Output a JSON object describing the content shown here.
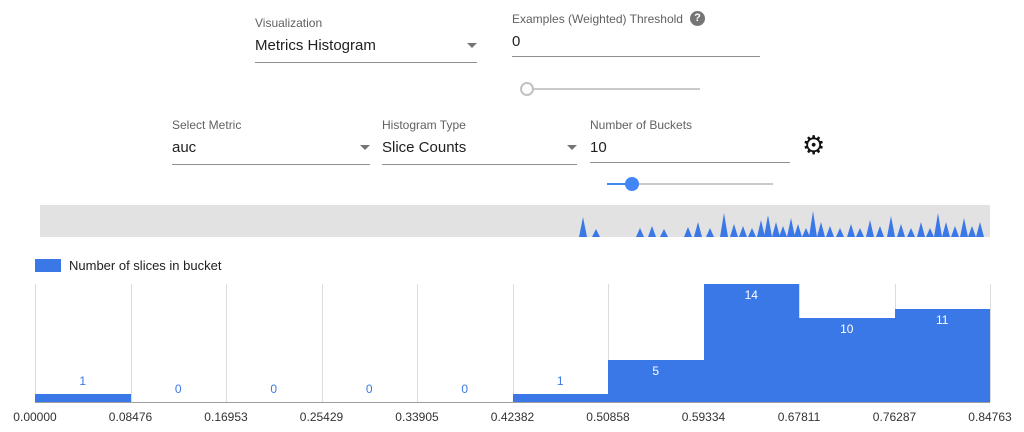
{
  "icons": {
    "gear": "⚙",
    "help": "?"
  },
  "controls": {
    "visualization": {
      "label": "Visualization",
      "value": "Metrics Histogram"
    },
    "threshold": {
      "label": "Examples (Weighted) Threshold",
      "value": "0",
      "slider_percent": 0
    },
    "select_metric": {
      "label": "Select Metric",
      "value": "auc"
    },
    "histogram_type": {
      "label": "Histogram Type",
      "value": "Slice Counts"
    },
    "num_buckets": {
      "label": "Number of Buckets",
      "value": "10",
      "slider_percent": 15
    }
  },
  "legend": {
    "label": "Number of slices in bucket",
    "swatch_color": "#3b78e7"
  },
  "colors": {
    "bar": "#3b78e7",
    "accent": "#4285f4",
    "strip_bg": "#e2e2e2"
  },
  "overview": {
    "spikes": [
      [
        543,
        20
      ],
      [
        556,
        8
      ],
      [
        600,
        9
      ],
      [
        612,
        11
      ],
      [
        624,
        8
      ],
      [
        648,
        10
      ],
      [
        658,
        15
      ],
      [
        670,
        9
      ],
      [
        684,
        24
      ],
      [
        694,
        13
      ],
      [
        703,
        11
      ],
      [
        712,
        9
      ],
      [
        721,
        17
      ],
      [
        728,
        22
      ],
      [
        736,
        15
      ],
      [
        743,
        11
      ],
      [
        751,
        19
      ],
      [
        758,
        13
      ],
      [
        766,
        9
      ],
      [
        773,
        26
      ],
      [
        781,
        15
      ],
      [
        790,
        11
      ],
      [
        800,
        9
      ],
      [
        811,
        13
      ],
      [
        820,
        9
      ],
      [
        830,
        17
      ],
      [
        840,
        11
      ],
      [
        851,
        21
      ],
      [
        861,
        13
      ],
      [
        871,
        9
      ],
      [
        881,
        15
      ],
      [
        890,
        9
      ],
      [
        898,
        24
      ],
      [
        906,
        15
      ],
      [
        915,
        11
      ],
      [
        924,
        19
      ],
      [
        932,
        11
      ],
      [
        940,
        15
      ]
    ]
  },
  "chart_data": {
    "type": "bar",
    "title": "Number of slices in bucket",
    "bucket_boundaries": [
      "0.00000",
      "0.08476",
      "0.16953",
      "0.25429",
      "0.33905",
      "0.42382",
      "0.50858",
      "0.59334",
      "0.67811",
      "0.76287",
      "0.84763"
    ],
    "values": [
      1,
      0,
      0,
      0,
      0,
      1,
      5,
      14,
      10,
      11
    ],
    "xlabel": "",
    "ylabel": "Number of slices in bucket",
    "ylim": [
      0,
      14
    ],
    "grid": "vertical",
    "legend_position": "top-left",
    "bar_color": "#3b78e7"
  }
}
